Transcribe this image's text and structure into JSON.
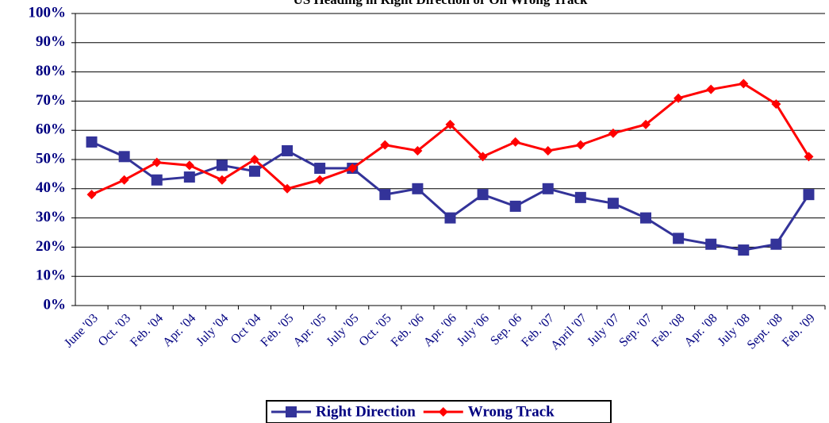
{
  "chart_data": {
    "type": "line",
    "title": "US Heading in Right Direction or On Wrong Track",
    "categories": [
      "June '03",
      "Oct. '03",
      "Feb. '04",
      "Apr. '04",
      "July '04",
      "Oct '04",
      "Feb. '05",
      "Apr. '05",
      "July '05",
      "Oct. '05",
      "Feb. '06",
      "Apr. '06",
      "July '06",
      "Sep. 06",
      "Feb. '07",
      "April '07",
      "July '07",
      "Sep. '07",
      "Feb. '08",
      "Apr. '08",
      "July '08",
      "Sept. '08",
      "Feb. '09"
    ],
    "series": [
      {
        "name": "Right Direction",
        "color": "#333399",
        "marker": "square",
        "values": [
          56,
          51,
          43,
          44,
          48,
          46,
          53,
          47,
          47,
          38,
          40,
          30,
          38,
          34,
          40,
          37,
          35,
          30,
          23,
          21,
          19,
          21,
          38
        ]
      },
      {
        "name": "Wrong Track",
        "color": "#ff0000",
        "marker": "diamond",
        "values": [
          38,
          43,
          49,
          48,
          43,
          50,
          40,
          43,
          47,
          55,
          53,
          62,
          51,
          56,
          53,
          55,
          59,
          62,
          71,
          74,
          76,
          69,
          51
        ]
      }
    ],
    "ylim": [
      0,
      100
    ],
    "yticks": [
      {
        "value": 0,
        "label": "0%"
      },
      {
        "value": 10,
        "label": "10%"
      },
      {
        "value": 20,
        "label": "20%"
      },
      {
        "value": 30,
        "label": "30%"
      },
      {
        "value": 40,
        "label": "40%"
      },
      {
        "value": 50,
        "label": "50%"
      },
      {
        "value": 60,
        "label": "60%"
      },
      {
        "value": 70,
        "label": "70%"
      },
      {
        "value": 80,
        "label": "80%"
      },
      {
        "value": 90,
        "label": "90%"
      },
      {
        "value": 100,
        "label": "100%"
      }
    ],
    "grid": true,
    "legend": "bottom"
  }
}
